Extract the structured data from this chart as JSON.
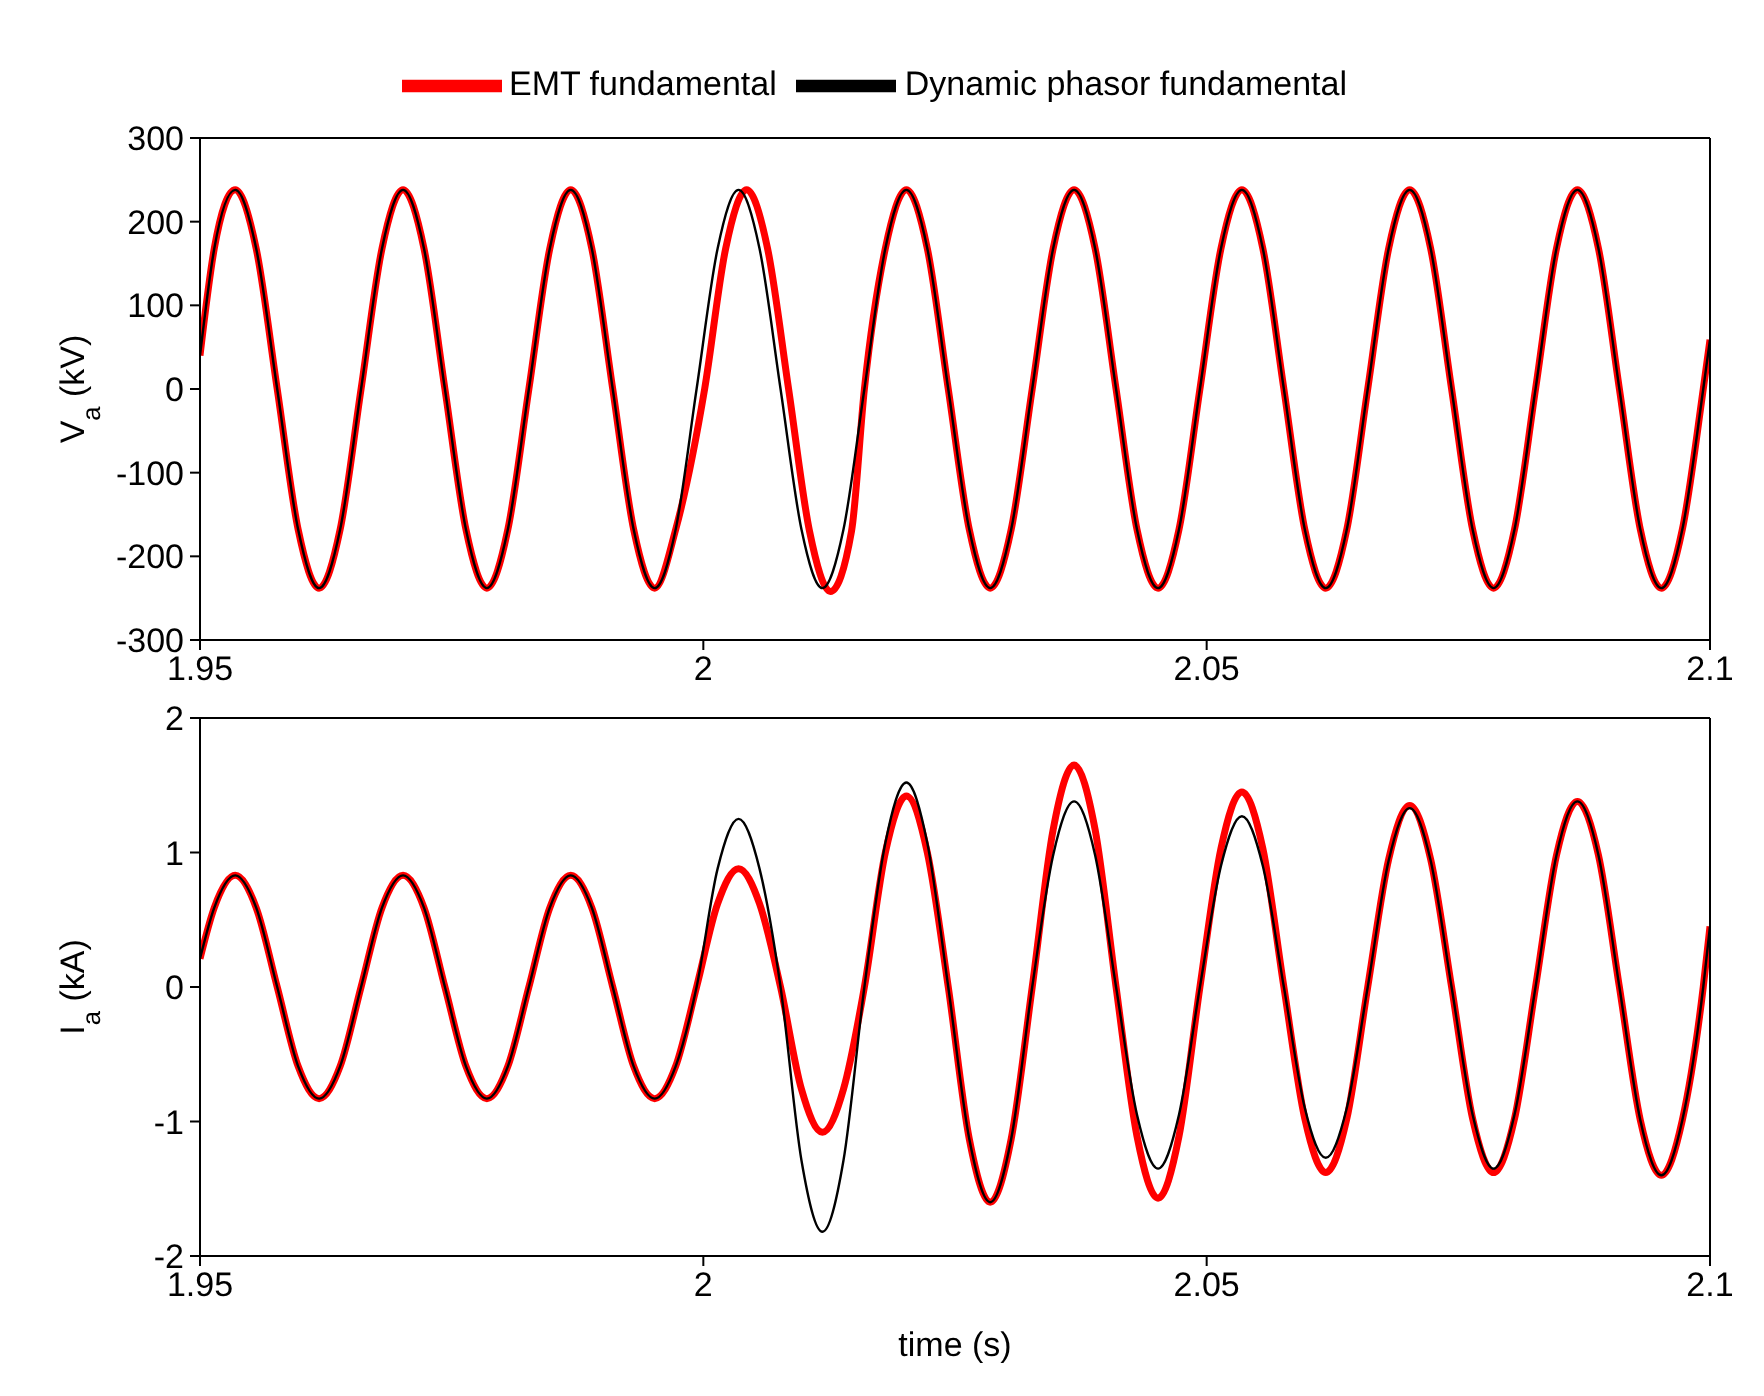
{
  "chart_data": [
    {
      "type": "line",
      "ylabel": "V$_{a}$ (kV)",
      "xlim": [
        1.95,
        2.1
      ],
      "xticks": [
        1.95,
        2,
        2.05,
        2.1
      ],
      "ylim": [
        -300,
        300
      ],
      "yticks": [
        -300,
        -200,
        -100,
        0,
        100,
        200,
        300
      ],
      "legend": "top",
      "marker": "none",
      "line_style": "solid",
      "x": [
        1.95,
        1.95142,
        1.9535,
        1.95558,
        1.95767,
        1.95975,
        1.96183,
        1.96392,
        1.966,
        1.96808,
        1.97017,
        1.97225,
        1.97433,
        1.97642,
        1.9785,
        1.98058,
        1.98267,
        1.98475,
        1.98683,
        1.98892,
        1.991,
        1.99308,
        1.99517,
        1.99725,
        1.99933,
        2.00142,
        2.0035,
        2.00558,
        2.00767,
        2.00975,
        2.01183,
        2.01392,
        2.016,
        2.01808,
        2.02017,
        2.02225,
        2.02433,
        2.02642,
        2.0285,
        2.03058,
        2.03267,
        2.03475,
        2.03683,
        2.03892,
        2.041,
        2.04308,
        2.04517,
        2.04725,
        2.04933,
        2.05142,
        2.0535,
        2.05558,
        2.05767,
        2.05975,
        2.06183,
        2.06392,
        2.066,
        2.06808,
        2.07017,
        2.07225,
        2.07433,
        2.07642,
        2.0785,
        2.08058,
        2.08267,
        2.08475,
        2.08683,
        2.08892,
        2.091,
        2.09308,
        2.09517,
        2.09725,
        2.09933,
        2.1
      ],
      "series": [
        {
          "name": "EMT fundamental",
          "color": "#ff0000",
          "x": [
            1.95,
            1.95142,
            1.9535,
            1.95558,
            1.95767,
            1.95975,
            1.96183,
            1.96392,
            1.966,
            1.96808,
            1.97017,
            1.97225,
            1.97433,
            1.97642,
            1.9785,
            1.98058,
            1.98267,
            1.98475,
            1.98683,
            1.98892,
            1.991,
            1.99308,
            1.99517,
            1.99725,
            2.00013,
            2.00222,
            2.0043,
            2.00638,
            2.00847,
            2.01055,
            2.01263,
            2.01472,
            2.016,
            2.01808,
            2.02017,
            2.02225,
            2.02433,
            2.02642,
            2.0285,
            2.03058,
            2.03267,
            2.03475,
            2.03683,
            2.03892,
            2.041,
            2.04308,
            2.04517,
            2.04725,
            2.04933,
            2.05142,
            2.0535,
            2.05558,
            2.05767,
            2.05975,
            2.06183,
            2.06392,
            2.066,
            2.06808,
            2.07017,
            2.07225,
            2.07433,
            2.07642,
            2.0785,
            2.08058,
            2.08267,
            2.08475,
            2.08683,
            2.08892,
            2.091,
            2.09308,
            2.09517,
            2.09725,
            2.09933,
            2.1
          ],
          "values": [
            40,
            168,
            238,
            168,
            0,
            -168,
            -238,
            -168,
            0,
            168,
            238,
            168,
            0,
            -168,
            -238,
            -168,
            0,
            168,
            238,
            168,
            0,
            -168,
            -238,
            -168,
            0,
            168,
            238,
            168,
            0,
            -170,
            -242,
            -170,
            0,
            168,
            238,
            168,
            0,
            -168,
            -238,
            -168,
            0,
            168,
            238,
            168,
            0,
            -168,
            -238,
            -168,
            0,
            168,
            238,
            168,
            0,
            -168,
            -238,
            -168,
            0,
            168,
            238,
            168,
            0,
            -168,
            -238,
            -168,
            0,
            168,
            238,
            168,
            0,
            -168,
            -238,
            -168,
            0,
            59
          ]
        },
        {
          "name": "Dynamic phasor fundamental",
          "color": "#000000",
          "values": [
            40,
            168,
            238,
            168,
            0,
            -168,
            -238,
            -168,
            0,
            168,
            238,
            168,
            0,
            -168,
            -238,
            -168,
            0,
            168,
            238,
            168,
            0,
            -168,
            -238,
            -168,
            0,
            168,
            238,
            168,
            0,
            -168,
            -238,
            -168,
            0,
            168,
            238,
            168,
            0,
            -168,
            -238,
            -168,
            0,
            168,
            238,
            168,
            0,
            -168,
            -238,
            -168,
            0,
            168,
            238,
            168,
            0,
            -168,
            -238,
            -168,
            0,
            168,
            238,
            168,
            0,
            -168,
            -238,
            -168,
            0,
            168,
            238,
            168,
            0,
            -168,
            -238,
            -168,
            0,
            59
          ]
        }
      ]
    },
    {
      "type": "line",
      "xlabel": "time (s)",
      "ylabel": "I$_{a}$ (kA)",
      "xlim": [
        1.95,
        2.1
      ],
      "xticks": [
        1.95,
        2,
        2.05,
        2.1
      ],
      "ylim": [
        -2,
        2
      ],
      "yticks": [
        -2,
        -1,
        0,
        1,
        2
      ],
      "marker": "none",
      "line_style": "solid",
      "x": [
        1.95,
        1.95142,
        1.9535,
        1.95558,
        1.95767,
        1.95975,
        1.96183,
        1.96392,
        1.966,
        1.96808,
        1.97017,
        1.97225,
        1.97433,
        1.97642,
        1.9785,
        1.98058,
        1.98267,
        1.98475,
        1.98683,
        1.98892,
        1.991,
        1.99308,
        1.99517,
        1.99725,
        1.99933,
        2.00142,
        2.0035,
        2.00558,
        2.00767,
        2.00975,
        2.01183,
        2.01392,
        2.016,
        2.01808,
        2.02017,
        2.02225,
        2.02433,
        2.02642,
        2.0285,
        2.03058,
        2.03267,
        2.03475,
        2.03683,
        2.03892,
        2.041,
        2.04308,
        2.04517,
        2.04725,
        2.04933,
        2.05142,
        2.0535,
        2.05558,
        2.05767,
        2.05975,
        2.06183,
        2.06392,
        2.066,
        2.06808,
        2.07017,
        2.07225,
        2.07433,
        2.07642,
        2.0785,
        2.08058,
        2.08267,
        2.08475,
        2.08683,
        2.08892,
        2.091,
        2.09308,
        2.09517,
        2.09725,
        2.09933,
        2.1
      ],
      "series": [
        {
          "color": "#ff0000",
          "values": [
            0.21,
            0.59,
            0.83,
            0.59,
            0,
            -0.59,
            -0.83,
            -0.59,
            0,
            0.59,
            0.83,
            0.59,
            0,
            -0.59,
            -0.83,
            -0.59,
            0,
            0.59,
            0.83,
            0.59,
            0,
            -0.59,
            -0.83,
            -0.59,
            0,
            0.62,
            0.88,
            0.62,
            0,
            -0.76,
            -1.08,
            -0.76,
            0,
            1.0,
            1.42,
            1.0,
            0,
            -1.13,
            -1.6,
            -1.13,
            0,
            1.17,
            1.65,
            1.17,
            0,
            -1.11,
            -1.57,
            -1.11,
            0,
            1.03,
            1.45,
            1.03,
            0,
            -0.98,
            -1.38,
            -0.98,
            0,
            0.95,
            1.35,
            0.95,
            0,
            -0.98,
            -1.38,
            -0.98,
            0,
            0.98,
            1.38,
            0.98,
            0,
            -0.99,
            -1.4,
            -0.99,
            0,
            0.45
          ]
        },
        {
          "color": "#000000",
          "values": [
            0.21,
            0.59,
            0.83,
            0.59,
            0,
            -0.59,
            -0.83,
            -0.59,
            0,
            0.59,
            0.83,
            0.59,
            0,
            -0.59,
            -0.83,
            -0.59,
            0,
            0.59,
            0.83,
            0.59,
            0,
            -0.59,
            -0.83,
            -0.59,
            0,
            0.88,
            1.25,
            0.88,
            0,
            -1.29,
            -1.82,
            -1.29,
            0,
            1.07,
            1.52,
            1.07,
            0,
            -1.13,
            -1.6,
            -1.13,
            0,
            0.98,
            1.38,
            0.98,
            0,
            -0.95,
            -1.35,
            -0.95,
            0,
            0.9,
            1.27,
            0.9,
            0,
            -0.9,
            -1.27,
            -0.9,
            0,
            0.94,
            1.33,
            0.94,
            0,
            -0.95,
            -1.35,
            -0.95,
            0,
            0.98,
            1.38,
            0.98,
            0,
            -0.99,
            -1.4,
            -0.99,
            0,
            0.45
          ]
        }
      ]
    }
  ]
}
